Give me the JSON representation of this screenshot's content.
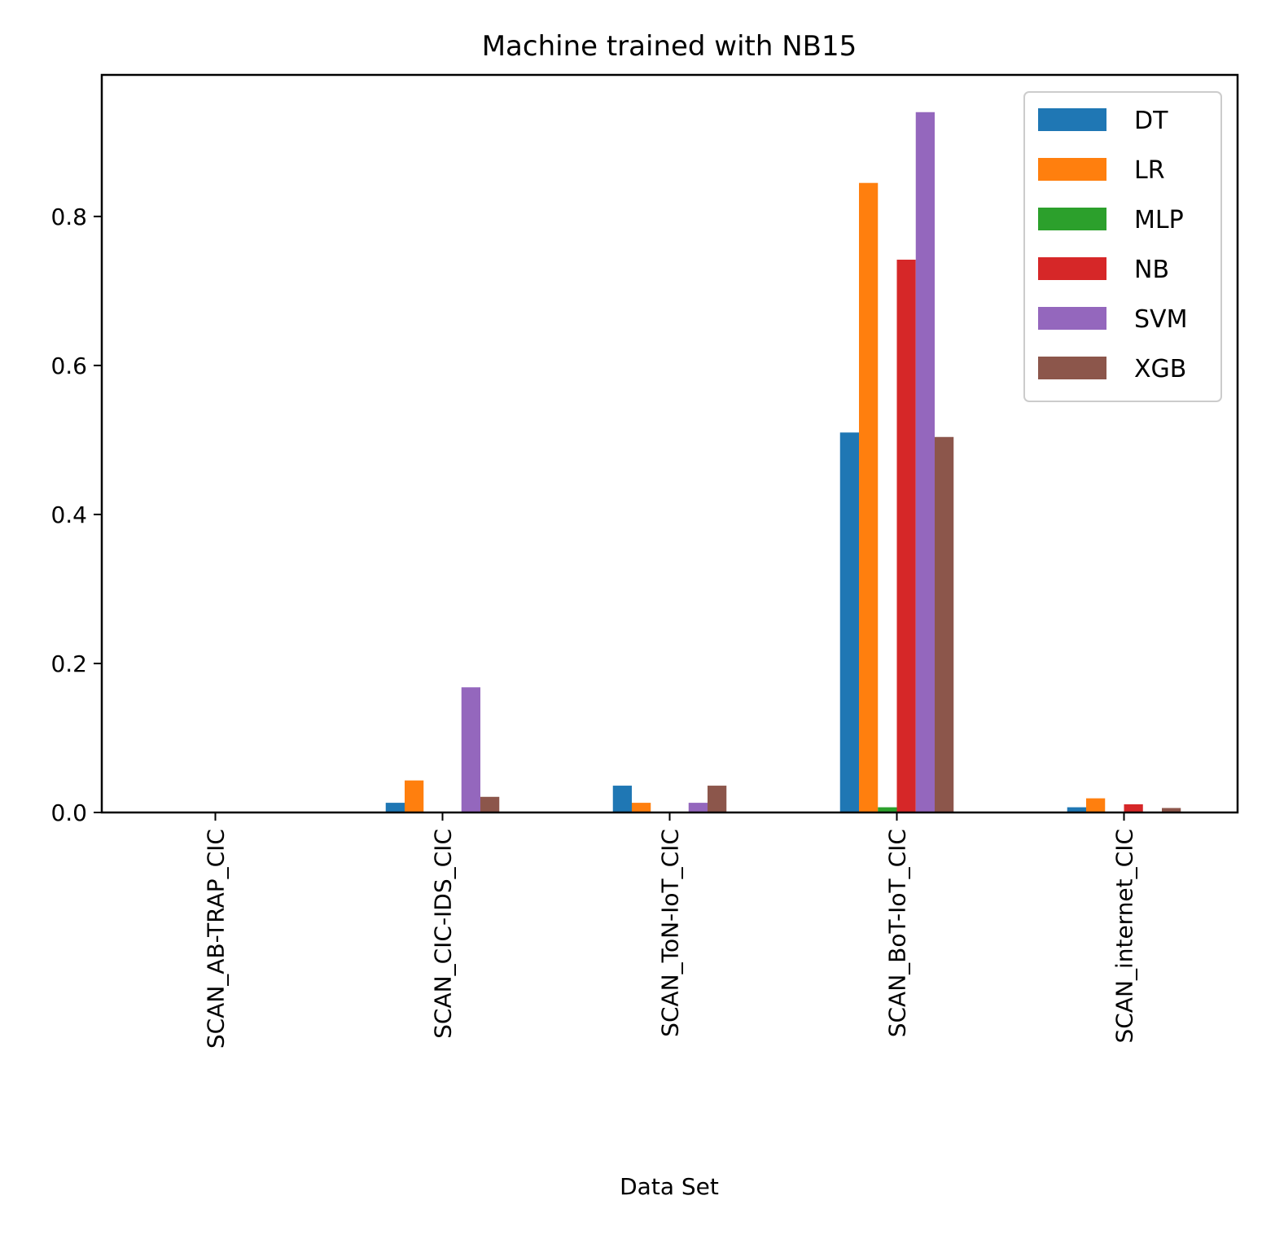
{
  "chart_data": {
    "type": "bar",
    "title": "Machine trained with NB15",
    "xlabel": "Data Set",
    "ylabel": "",
    "ylim": [
      0,
      0.99
    ],
    "yticks": [
      "0.0",
      "0.2",
      "0.4",
      "0.6",
      "0.8"
    ],
    "ytick_values": [
      0.0,
      0.2,
      0.4,
      0.6,
      0.8
    ],
    "categories": [
      "SCAN_AB-TRAP_CIC",
      "SCAN_CIC-IDS_CIC",
      "SCAN_ToN-IoT_CIC",
      "SCAN_BoT-IoT_CIC",
      "SCAN_internet_CIC"
    ],
    "legend_position": "top-right",
    "grid": false,
    "series": [
      {
        "name": "DT",
        "color": "#1f77b4",
        "values": [
          0.0,
          0.013,
          0.036,
          0.51,
          0.007
        ]
      },
      {
        "name": "LR",
        "color": "#ff7f0e",
        "values": [
          0.0,
          0.043,
          0.013,
          0.845,
          0.019
        ]
      },
      {
        "name": "MLP",
        "color": "#2ca02c",
        "values": [
          0.0,
          0.0,
          0.0,
          0.007,
          0.0
        ]
      },
      {
        "name": "NB",
        "color": "#d62728",
        "values": [
          0.0,
          0.0,
          0.0,
          0.742,
          0.011
        ]
      },
      {
        "name": "SVM",
        "color": "#9467bd",
        "values": [
          0.0,
          0.168,
          0.013,
          0.94,
          0.001
        ]
      },
      {
        "name": "XGB",
        "color": "#8c564b",
        "values": [
          0.0,
          0.021,
          0.036,
          0.504,
          0.006
        ]
      }
    ]
  }
}
